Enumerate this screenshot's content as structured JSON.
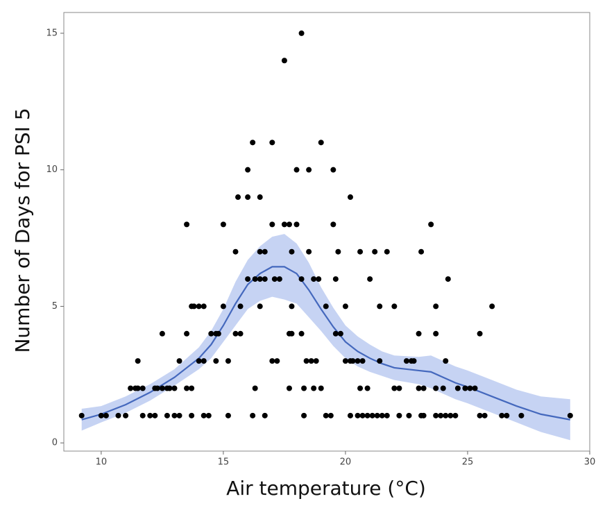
{
  "chart_data": {
    "type": "scatter",
    "x_label": "Air temperature (°C)",
    "y_label": "Number of Days for PSI 5",
    "xlim": [
      8.47,
      30.0
    ],
    "ylim": [
      -0.3,
      15.76
    ],
    "xticks": [
      10,
      15,
      20,
      25,
      30
    ],
    "yticks": [
      0,
      5,
      10,
      15
    ],
    "point_color": "#000000",
    "line_color": "#4468bd",
    "band_color": "#c6d3f3",
    "x": [
      9.2,
      10.0,
      10.2,
      10.7,
      11.0,
      11.7,
      12.0,
      12.2,
      12.7,
      13.0,
      13.2,
      13.7,
      14.2,
      14.4,
      15.2,
      16.2,
      16.7,
      18.3,
      19.2,
      19.4,
      20.2,
      20.5,
      20.7,
      20.9,
      21.1,
      21.3,
      21.5,
      21.7,
      22.2,
      22.6,
      23.1,
      23.2,
      23.7,
      23.9,
      24.1,
      24.3,
      24.5,
      25.5,
      25.7,
      26.4,
      26.6,
      27.2,
      29.2,
      11.2,
      11.4,
      11.5,
      11.7,
      12.2,
      12.3,
      12.5,
      12.7,
      12.8,
      13.0,
      13.5,
      13.7,
      16.3,
      17.7,
      18.3,
      18.7,
      19.0,
      20.6,
      20.9,
      22.0,
      22.2,
      23.0,
      23.2,
      23.7,
      24.0,
      24.6,
      24.9,
      25.1,
      25.3,
      11.5,
      13.2,
      14.0,
      14.2,
      14.7,
      15.2,
      17.0,
      17.2,
      18.4,
      18.6,
      18.8,
      20.0,
      20.2,
      20.3,
      20.5,
      20.7,
      21.4,
      22.5,
      22.7,
      22.8,
      24.1,
      12.5,
      13.5,
      14.5,
      14.7,
      14.8,
      15.5,
      15.7,
      17.7,
      17.8,
      18.2,
      19.6,
      19.8,
      23.0,
      23.7,
      25.5,
      13.7,
      13.8,
      14.0,
      14.2,
      15.0,
      15.7,
      16.5,
      17.8,
      19.2,
      20.0,
      21.4,
      22.0,
      23.7,
      26.0,
      16.0,
      16.3,
      16.5,
      16.7,
      17.1,
      17.3,
      18.2,
      18.7,
      18.9,
      19.6,
      21.0,
      24.2,
      15.5,
      16.5,
      16.7,
      17.8,
      18.5,
      19.7,
      20.6,
      21.2,
      21.7,
      23.1,
      13.5,
      15.0,
      17.0,
      17.5,
      17.7,
      18.0,
      19.5,
      23.5,
      15.6,
      16.0,
      16.5,
      20.2,
      16.0,
      18.0,
      18.5,
      19.5,
      16.2,
      17.0,
      19.0,
      17.5,
      18.2
    ],
    "y": [
      1,
      1,
      1,
      1,
      1,
      1,
      1,
      1,
      1,
      1,
      1,
      1,
      1,
      1,
      1,
      1,
      1,
      1,
      1,
      1,
      1,
      1,
      1,
      1,
      1,
      1,
      1,
      1,
      1,
      1,
      1,
      1,
      1,
      1,
      1,
      1,
      1,
      1,
      1,
      1,
      1,
      1,
      1,
      2,
      2,
      2,
      2,
      2,
      2,
      2,
      2,
      2,
      2,
      2,
      2,
      2,
      2,
      2,
      2,
      2,
      2,
      2,
      2,
      2,
      2,
      2,
      2,
      2,
      2,
      2,
      2,
      2,
      3,
      3,
      3,
      3,
      3,
      3,
      3,
      3,
      3,
      3,
      3,
      3,
      3,
      3,
      3,
      3,
      3,
      3,
      3,
      3,
      3,
      4,
      4,
      4,
      4,
      4,
      4,
      4,
      4,
      4,
      4,
      4,
      4,
      4,
      4,
      4,
      5,
      5,
      5,
      5,
      5,
      5,
      5,
      5,
      5,
      5,
      5,
      5,
      5,
      5,
      6,
      6,
      6,
      6,
      6,
      6,
      6,
      6,
      6,
      6,
      6,
      6,
      7,
      7,
      7,
      7,
      7,
      7,
      7,
      7,
      7,
      7,
      8,
      8,
      8,
      8,
      8,
      8,
      8,
      8,
      9,
      9,
      9,
      9,
      10,
      10,
      10,
      10,
      11,
      11,
      11,
      14,
      15
    ],
    "fit_x": [
      9.2,
      10,
      11,
      12,
      13,
      14,
      14.5,
      15,
      15.5,
      16,
      16.5,
      17,
      17.5,
      18,
      18.5,
      19,
      19.5,
      20,
      20.5,
      21,
      21.5,
      22,
      23,
      23.5,
      24,
      24.5,
      25,
      26,
      27,
      28,
      29.2
    ],
    "fit_y": [
      0.85,
      1.05,
      1.4,
      1.85,
      2.4,
      3.1,
      3.6,
      4.3,
      5.1,
      5.8,
      6.2,
      6.45,
      6.45,
      6.2,
      5.6,
      4.9,
      4.25,
      3.7,
      3.35,
      3.1,
      2.9,
      2.75,
      2.65,
      2.6,
      2.4,
      2.2,
      2.05,
      1.7,
      1.35,
      1.05,
      0.85
    ],
    "fit_lower": [
      0.45,
      0.75,
      1.1,
      1.55,
      2.1,
      2.7,
      3.1,
      3.7,
      4.3,
      4.9,
      5.2,
      5.35,
      5.25,
      5.1,
      4.6,
      4.1,
      3.55,
      3.1,
      2.8,
      2.6,
      2.45,
      2.3,
      2.15,
      2.0,
      1.8,
      1.6,
      1.45,
      1.1,
      0.75,
      0.4,
      0.1
    ],
    "fit_upper": [
      1.25,
      1.35,
      1.7,
      2.15,
      2.7,
      3.5,
      4.1,
      4.9,
      5.9,
      6.7,
      7.2,
      7.55,
      7.65,
      7.3,
      6.6,
      5.7,
      4.95,
      4.3,
      3.9,
      3.6,
      3.35,
      3.2,
      3.15,
      3.2,
      3.0,
      2.8,
      2.65,
      2.3,
      1.95,
      1.7,
      1.6
    ]
  }
}
